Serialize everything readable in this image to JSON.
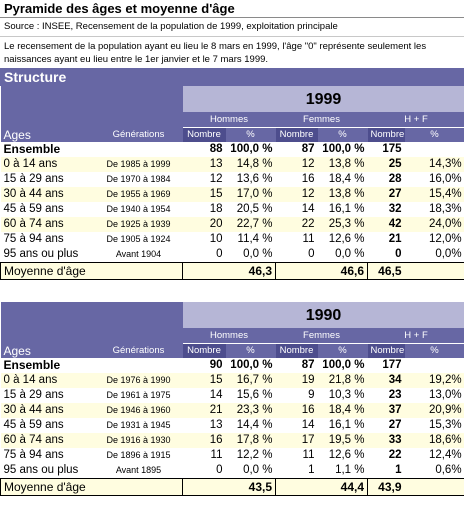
{
  "title": "Pyramide des âges et moyenne d'âge",
  "source": "Source : INSEE, Recensement de la population de 1999, exploitation principale",
  "note": "Le recensement de la population ayant eu lieu le 8 mars en 1999, l'âge \"0\" représente seulement les naissances ayant eu lieu entre le 1er janvier et le 7 mars 1999.",
  "section_title": "Structure",
  "headers": {
    "ages": "Ages",
    "generations": "Générations",
    "hommes": "Hommes",
    "femmes": "Femmes",
    "hf": "H + F",
    "nombre": "Nombre",
    "pct": "%"
  },
  "tables": [
    {
      "year": "1999",
      "total": {
        "label": "Ensemble",
        "h_n": "88",
        "h_p": "100,0 %",
        "f_n": "87",
        "f_p": "100,0 %",
        "t_n": "175",
        "t_p": ""
      },
      "rows": [
        {
          "age": "0 à 14 ans",
          "gen": "De 1985 à 1999",
          "h_n": "13",
          "h_p": "14,8 %",
          "f_n": "12",
          "f_p": "13,8 %",
          "t_n": "25",
          "t_p": "14,3%"
        },
        {
          "age": "15 à 29 ans",
          "gen": "De 1970 à 1984",
          "h_n": "12",
          "h_p": "13,6 %",
          "f_n": "16",
          "f_p": "18,4 %",
          "t_n": "28",
          "t_p": "16,0%"
        },
        {
          "age": "30 à 44 ans",
          "gen": "De 1955 à 1969",
          "h_n": "15",
          "h_p": "17,0 %",
          "f_n": "12",
          "f_p": "13,8 %",
          "t_n": "27",
          "t_p": "15,4%"
        },
        {
          "age": "45 à 59 ans",
          "gen": "De 1940 à 1954",
          "h_n": "18",
          "h_p": "20,5 %",
          "f_n": "14",
          "f_p": "16,1 %",
          "t_n": "32",
          "t_p": "18,3%"
        },
        {
          "age": "60 à 74 ans",
          "gen": "De 1925 à 1939",
          "h_n": "20",
          "h_p": "22,7 %",
          "f_n": "22",
          "f_p": "25,3 %",
          "t_n": "42",
          "t_p": "24,0%"
        },
        {
          "age": "75 à 94 ans",
          "gen": "De 1905 à 1924",
          "h_n": "10",
          "h_p": "11,4 %",
          "f_n": "11",
          "f_p": "12,6 %",
          "t_n": "21",
          "t_p": "12,0%"
        },
        {
          "age": "95 ans ou plus",
          "gen": "Avant 1904",
          "h_n": "0",
          "h_p": "0,0 %",
          "f_n": "0",
          "f_p": "0,0 %",
          "t_n": "0",
          "t_p": "0,0%"
        }
      ],
      "moyenne": {
        "label": "Moyenne d'âge",
        "h": "46,3",
        "f": "46,6",
        "t": "46,5"
      }
    },
    {
      "year": "1990",
      "total": {
        "label": "Ensemble",
        "h_n": "90",
        "h_p": "100,0 %",
        "f_n": "87",
        "f_p": "100,0 %",
        "t_n": "177",
        "t_p": ""
      },
      "rows": [
        {
          "age": "0 à 14 ans",
          "gen": "De 1976 à 1990",
          "h_n": "15",
          "h_p": "16,7 %",
          "f_n": "19",
          "f_p": "21,8 %",
          "t_n": "34",
          "t_p": "19,2%"
        },
        {
          "age": "15 à 29 ans",
          "gen": "De 1961 à 1975",
          "h_n": "14",
          "h_p": "15,6 %",
          "f_n": "9",
          "f_p": "10,3 %",
          "t_n": "23",
          "t_p": "13,0%"
        },
        {
          "age": "30 à 44 ans",
          "gen": "De 1946 à 1960",
          "h_n": "21",
          "h_p": "23,3 %",
          "f_n": "16",
          "f_p": "18,4 %",
          "t_n": "37",
          "t_p": "20,9%"
        },
        {
          "age": "45 à 59 ans",
          "gen": "De 1931 à 1945",
          "h_n": "13",
          "h_p": "14,4 %",
          "f_n": "14",
          "f_p": "16,1 %",
          "t_n": "27",
          "t_p": "15,3%"
        },
        {
          "age": "60 à 74 ans",
          "gen": "De 1916 à 1930",
          "h_n": "16",
          "h_p": "17,8 %",
          "f_n": "17",
          "f_p": "19,5 %",
          "t_n": "33",
          "t_p": "18,6%"
        },
        {
          "age": "75 à 94 ans",
          "gen": "De 1896 à 1915",
          "h_n": "11",
          "h_p": "12,2 %",
          "f_n": "11",
          "f_p": "12,6 %",
          "t_n": "22",
          "t_p": "12,4%"
        },
        {
          "age": "95 ans ou plus",
          "gen": "Avant 1895",
          "h_n": "0",
          "h_p": "0,0 %",
          "f_n": "1",
          "f_p": "1,1 %",
          "t_n": "1",
          "t_p": "0,6%"
        }
      ],
      "moyenne": {
        "label": "Moyenne d'âge",
        "h": "43,5",
        "f": "44,4",
        "t": "43,9"
      }
    }
  ]
}
